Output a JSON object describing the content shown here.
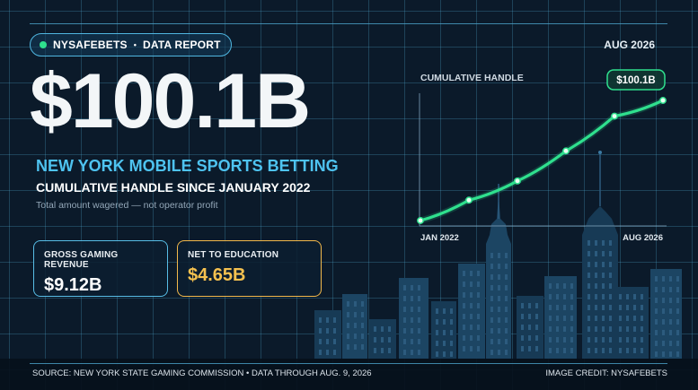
{
  "brand": {
    "name": "NYSAFEBETS",
    "separator": "•",
    "tag": "DATA REPORT"
  },
  "report_date": "AUG 2026",
  "headline_value": "$100.1B",
  "headline": "NEW YORK MOBILE SPORTS BETTING",
  "subhead": "CUMULATIVE HANDLE SINCE JANUARY 2022",
  "note": "Total amount wagered — not operator profit",
  "cards": [
    {
      "label": "GROSS GAMING REVENUE",
      "value": "$9.12B"
    },
    {
      "label": "NET TO EDUCATION",
      "value": "$4.65B"
    }
  ],
  "footer": {
    "source": "SOURCE: NEW YORK STATE GAMING COMMISSION  •  DATA THROUGH AUG. 9, 2026",
    "credit": "IMAGE CREDIT: NYSAFEBETS"
  },
  "colors": {
    "accent_blue": "#4ec3f0",
    "line_green": "#2fe08e",
    "education_gold": "#f5c14f",
    "background": "#0b1a2a"
  },
  "chart_data": {
    "type": "line",
    "title": "CUMULATIVE HANDLE",
    "x_start_label": "JAN 2022",
    "x_end_label": "AUG 2026",
    "end_value_label": "$100.1B",
    "ylabel": "",
    "unit": "$B",
    "x": [
      0,
      1,
      2,
      3,
      4,
      5
    ],
    "values": [
      0,
      17,
      33,
      58,
      87,
      100.1
    ],
    "ylim": [
      0,
      100.1
    ],
    "grid": true,
    "legend": "none"
  }
}
